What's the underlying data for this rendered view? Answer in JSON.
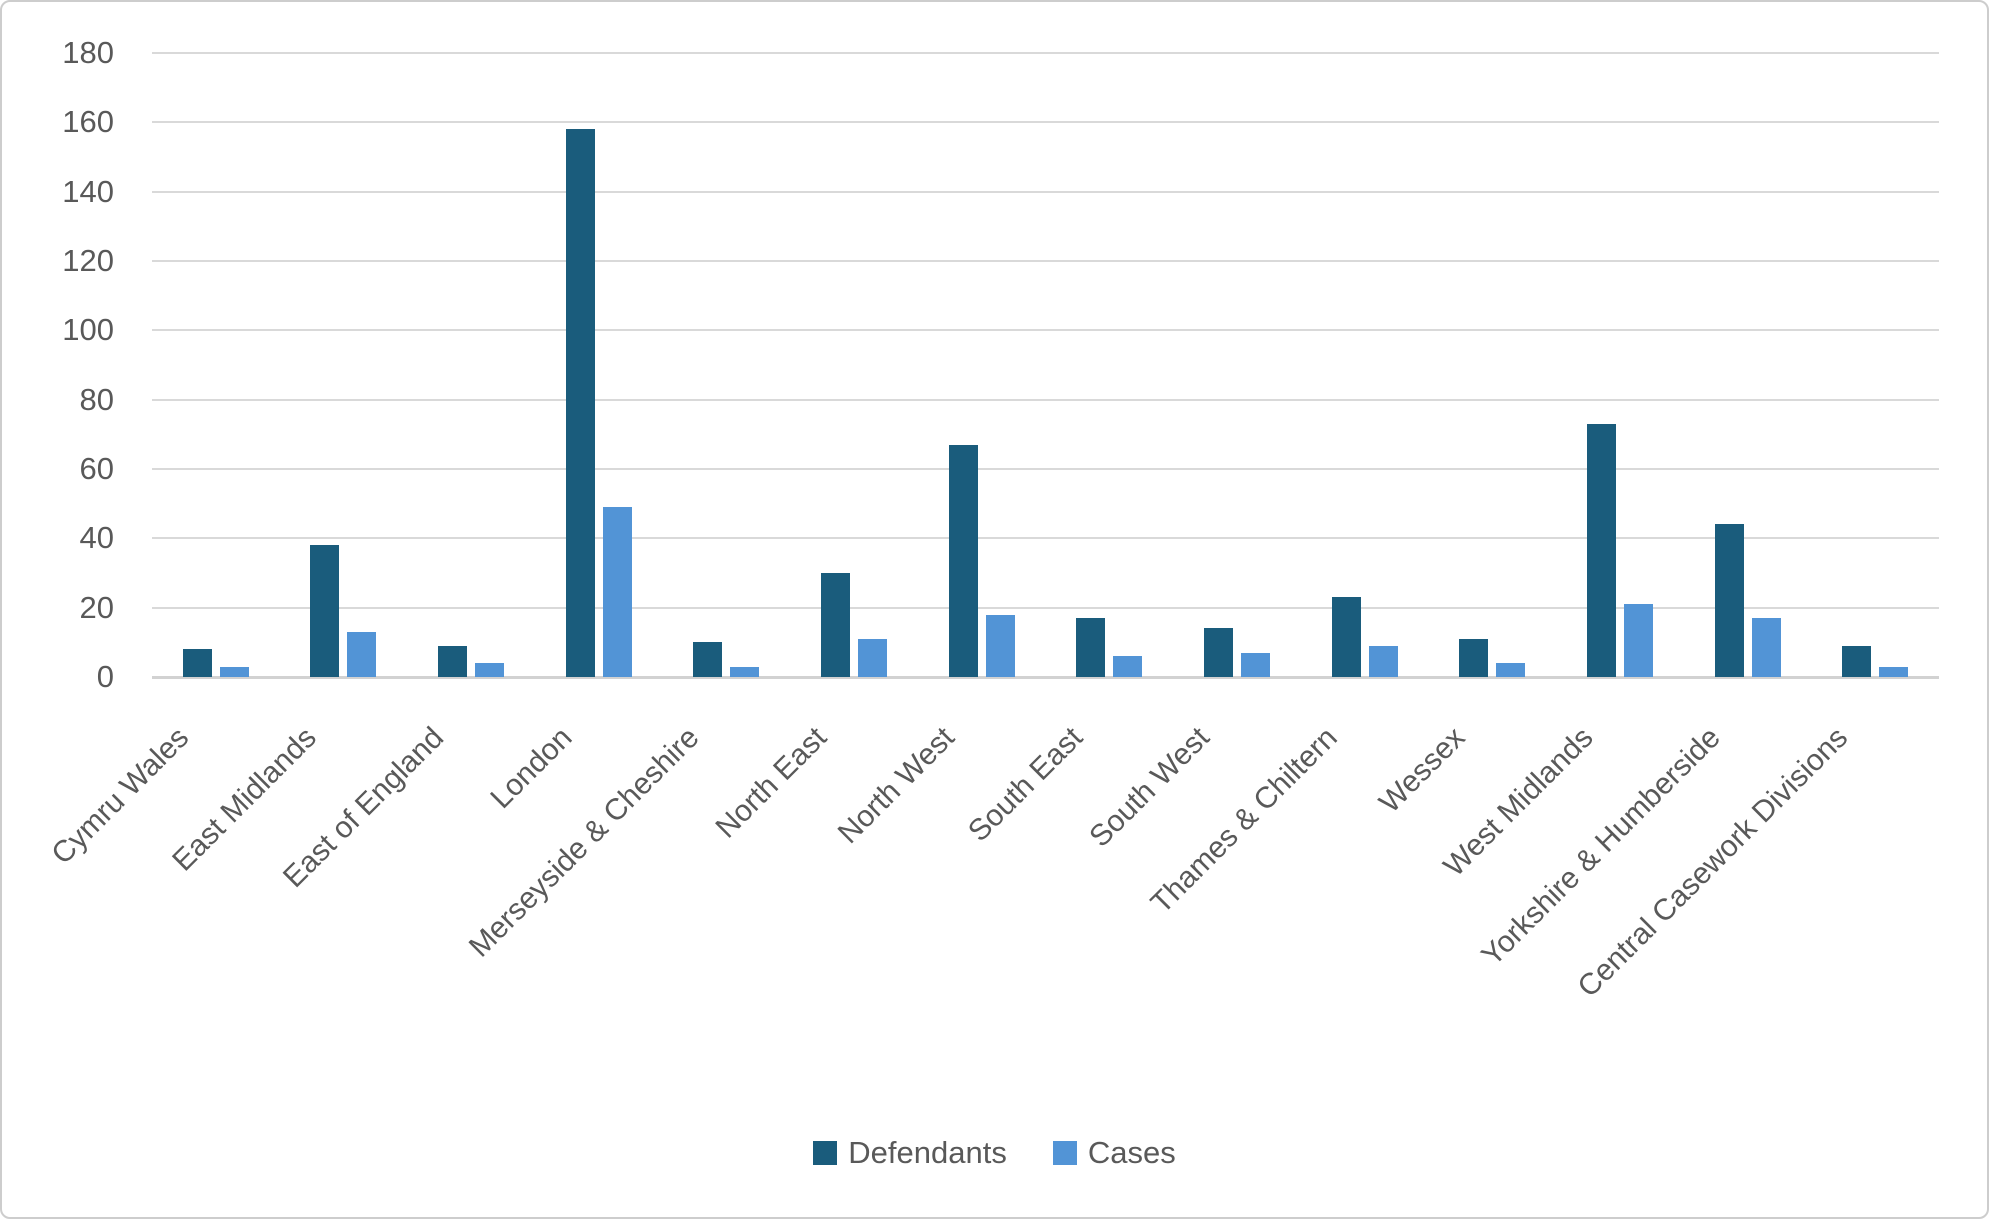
{
  "chart_data": {
    "type": "bar",
    "title": "",
    "xlabel": "",
    "ylabel": "",
    "categories": [
      "Cymru Wales",
      "East Midlands",
      "East of England",
      "London",
      "Merseyside & Cheshire",
      "North East",
      "North West",
      "South East",
      "South West",
      "Thames & Chiltern",
      "Wessex",
      "West Midlands",
      "Yorkshire & Humberside",
      "Central Casework Divisions"
    ],
    "series": [
      {
        "name": "Defendants",
        "color": "#1a5c7c",
        "values": [
          8,
          38,
          9,
          158,
          10,
          30,
          67,
          17,
          14,
          23,
          11,
          73,
          44,
          9
        ]
      },
      {
        "name": "Cases",
        "color": "#5294d6",
        "values": [
          3,
          13,
          4,
          49,
          3,
          11,
          18,
          6,
          7,
          9,
          4,
          21,
          17,
          3
        ]
      }
    ],
    "ylim": [
      0,
      180
    ],
    "ytick_step": 20,
    "grid": true,
    "legend_position": "bottom"
  },
  "axis": {
    "y_ticks": [
      "0",
      "20",
      "40",
      "60",
      "80",
      "100",
      "120",
      "140",
      "160",
      "180"
    ]
  },
  "style": {
    "gridline_color": "#d9d9d9",
    "axis_line_color": "#d2d2d2",
    "text_color": "#595959",
    "frame_border_color": "#cdcdcd",
    "background": "#ffffff"
  }
}
